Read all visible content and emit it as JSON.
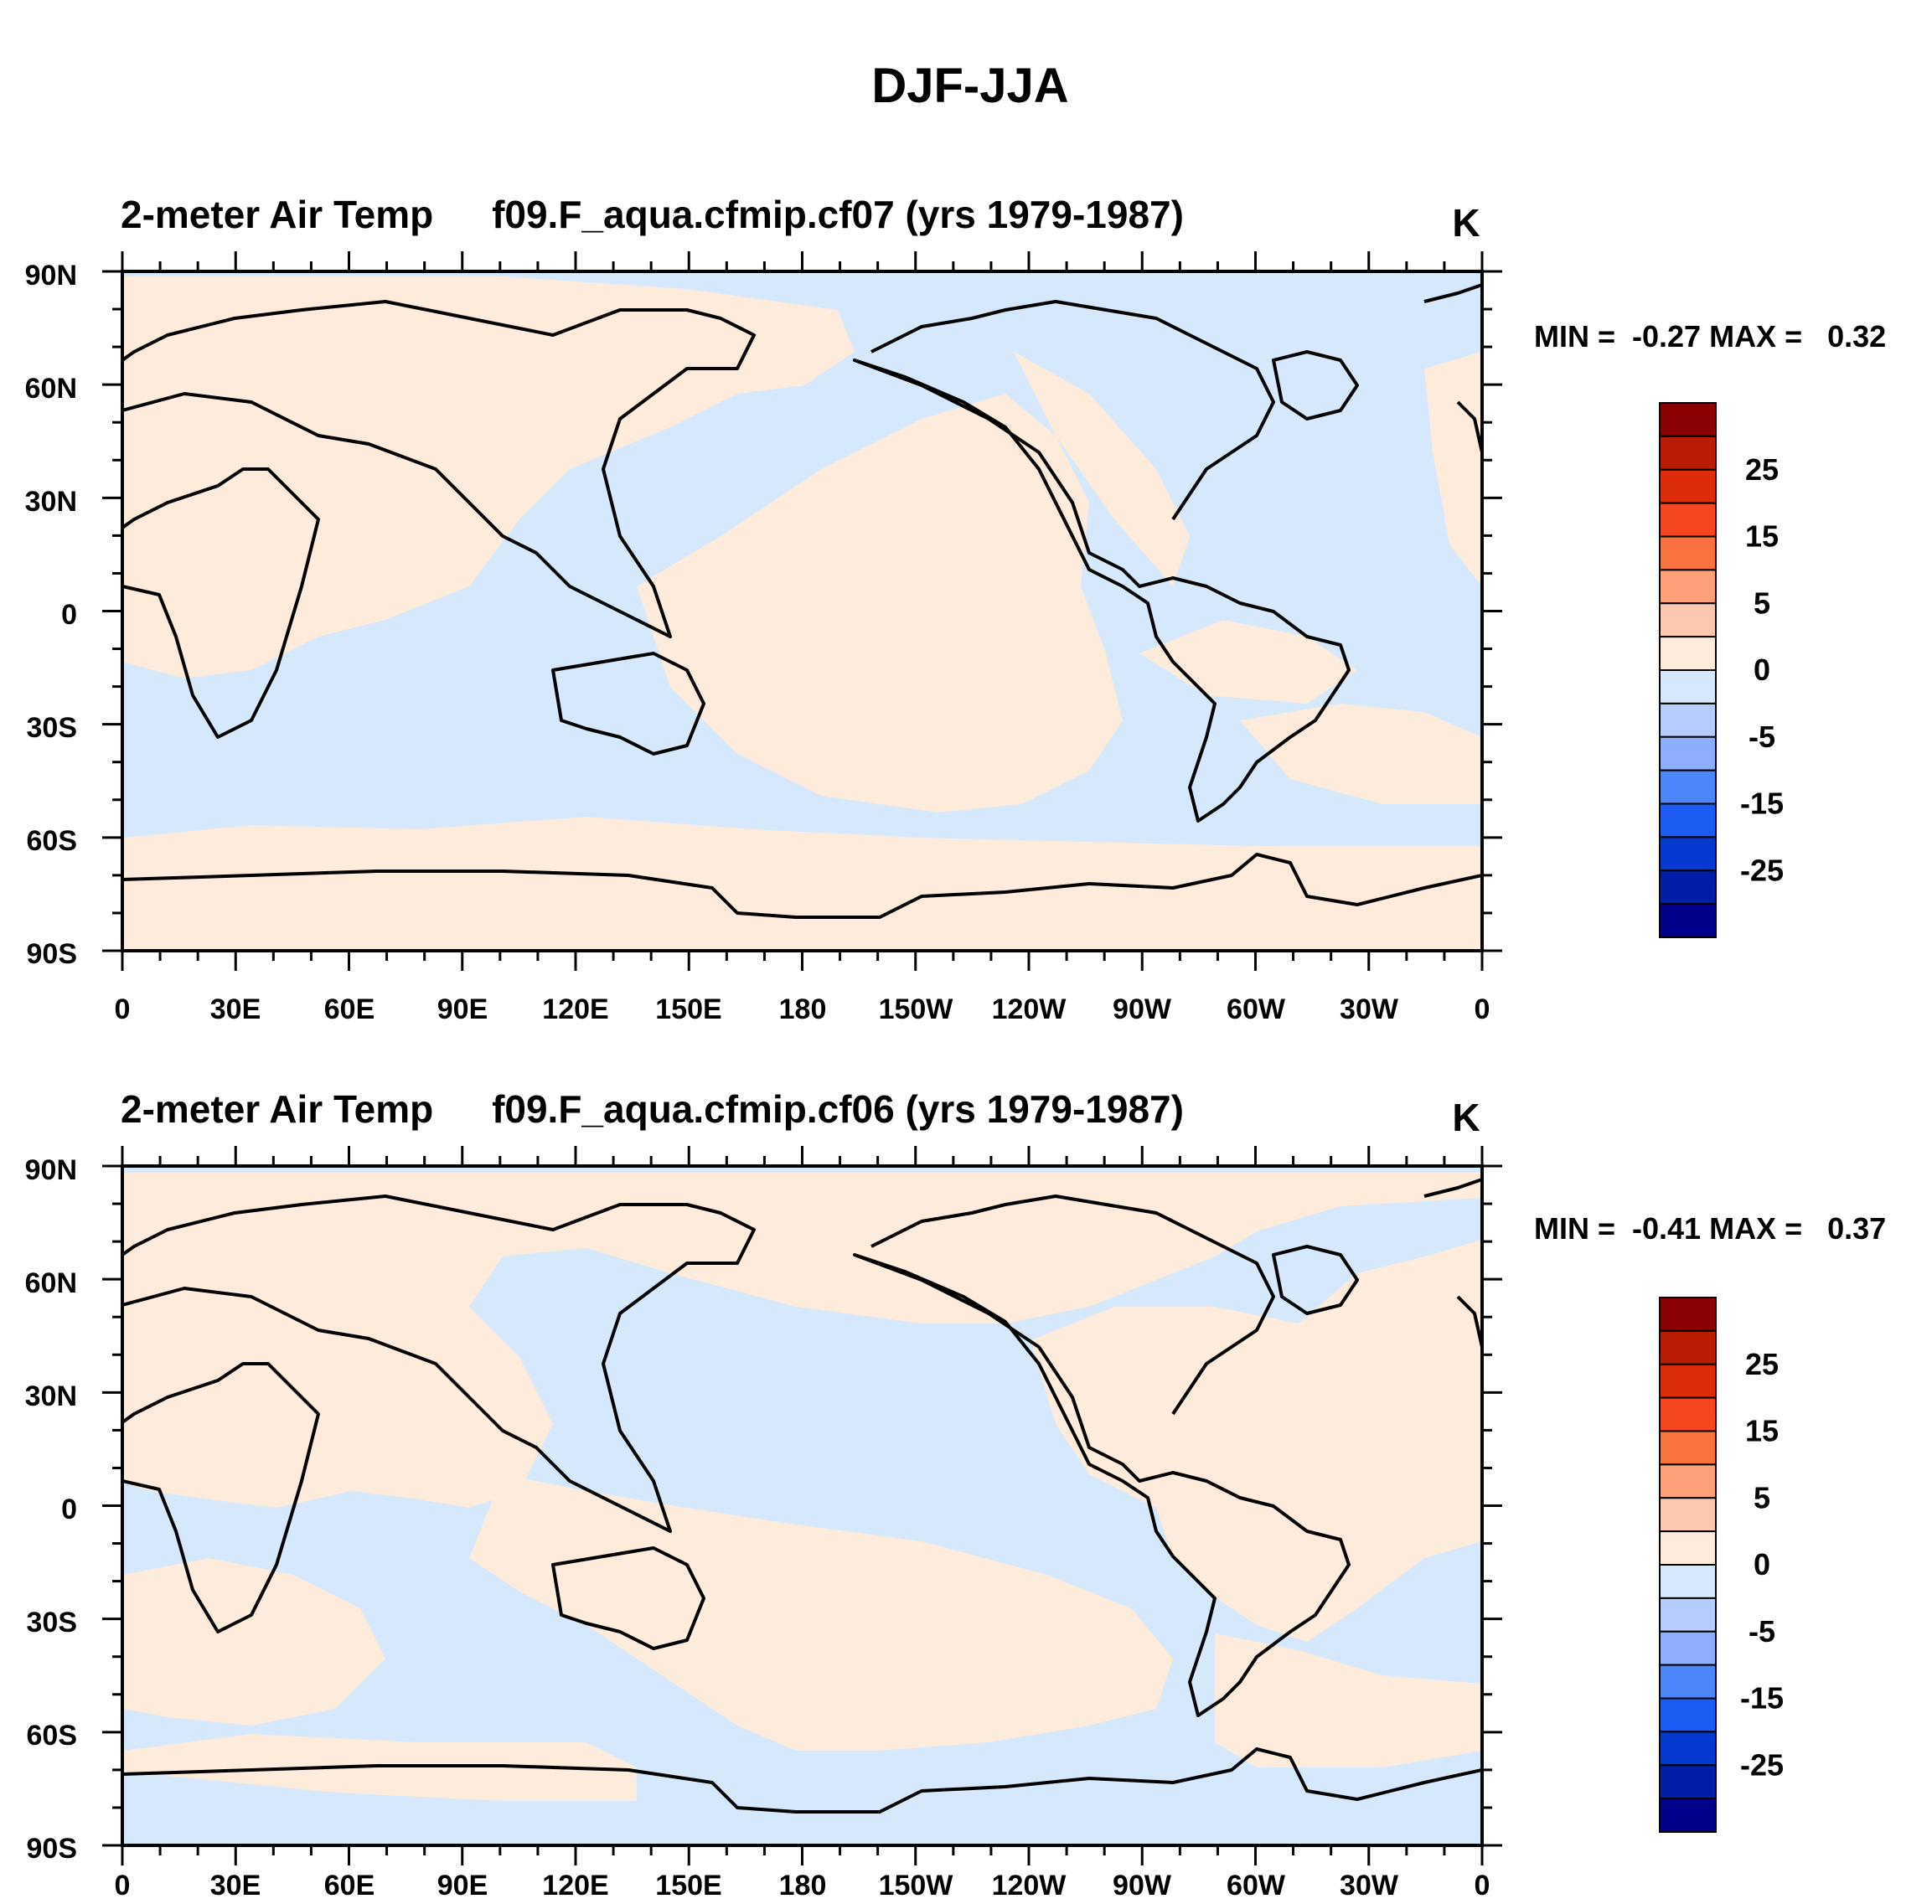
{
  "figure_title": "DJF-JJA",
  "colors": {
    "ocean_neg": "#d6e8fb",
    "land_pos": "#fdebdb",
    "coast": "#000000",
    "contour_levels": [
      "#00008b",
      "#001ea8",
      "#0538cf",
      "#1c5cf0",
      "#4d86f8",
      "#8daefc",
      "#b5ccfd",
      "#d6e8fb",
      "#fdebdb",
      "#fcc9b0",
      "#fca17a",
      "#fb7140",
      "#f5461f",
      "#de2b09",
      "#b81d03",
      "#8b0000"
    ]
  },
  "colorbar": {
    "tick_labels": [
      "25",
      "15",
      "5",
      "0",
      "-5",
      "-15",
      "-25"
    ]
  },
  "panels": [
    {
      "left_title": "2-meter Air Temp",
      "center_title": "f09.F_aqua.cfmip.cf07 (yrs 1979-1987)",
      "units": "K",
      "stats_text": "MIN =  -0.27 MAX =   0.32",
      "min": -0.27,
      "max": 0.32
    },
    {
      "left_title": "2-meter Air Temp",
      "center_title": "f09.F_aqua.cfmip.cf06 (yrs 1979-1987)",
      "units": "K",
      "stats_text": "MIN =  -0.41 MAX =   0.37",
      "min": -0.41,
      "max": 0.37
    }
  ],
  "axes": {
    "lat_labels": [
      "90N",
      "60N",
      "30N",
      "0",
      "30S",
      "60S",
      "90S"
    ],
    "lon_labels": [
      "0",
      "30E",
      "60E",
      "90E",
      "120E",
      "150E",
      "180",
      "150W",
      "120W",
      "90W",
      "60W",
      "30W",
      "0"
    ]
  },
  "chart_data": [
    {
      "type": "heatmap",
      "title": "f09.F_aqua.cfmip.cf07 (yrs 1979-1987)",
      "variable": "2-meter Air Temp",
      "units": "K",
      "xlim": [
        0,
        360
      ],
      "ylim": [
        -90,
        90
      ],
      "value_range": [
        -0.27,
        0.32
      ],
      "contour_levels": [
        -30,
        -25,
        -20,
        -15,
        -10,
        -5,
        -2,
        0,
        2,
        5,
        10,
        15,
        20,
        25,
        30
      ]
    },
    {
      "type": "heatmap",
      "title": "f09.F_aqua.cfmip.cf06 (yrs 1979-1987)",
      "variable": "2-meter Air Temp",
      "units": "K",
      "xlim": [
        0,
        360
      ],
      "ylim": [
        -90,
        90
      ],
      "value_range": [
        -0.41,
        0.37
      ],
      "contour_levels": [
        -30,
        -25,
        -20,
        -15,
        -10,
        -5,
        -2,
        0,
        2,
        5,
        10,
        15,
        20,
        25,
        30
      ]
    }
  ]
}
